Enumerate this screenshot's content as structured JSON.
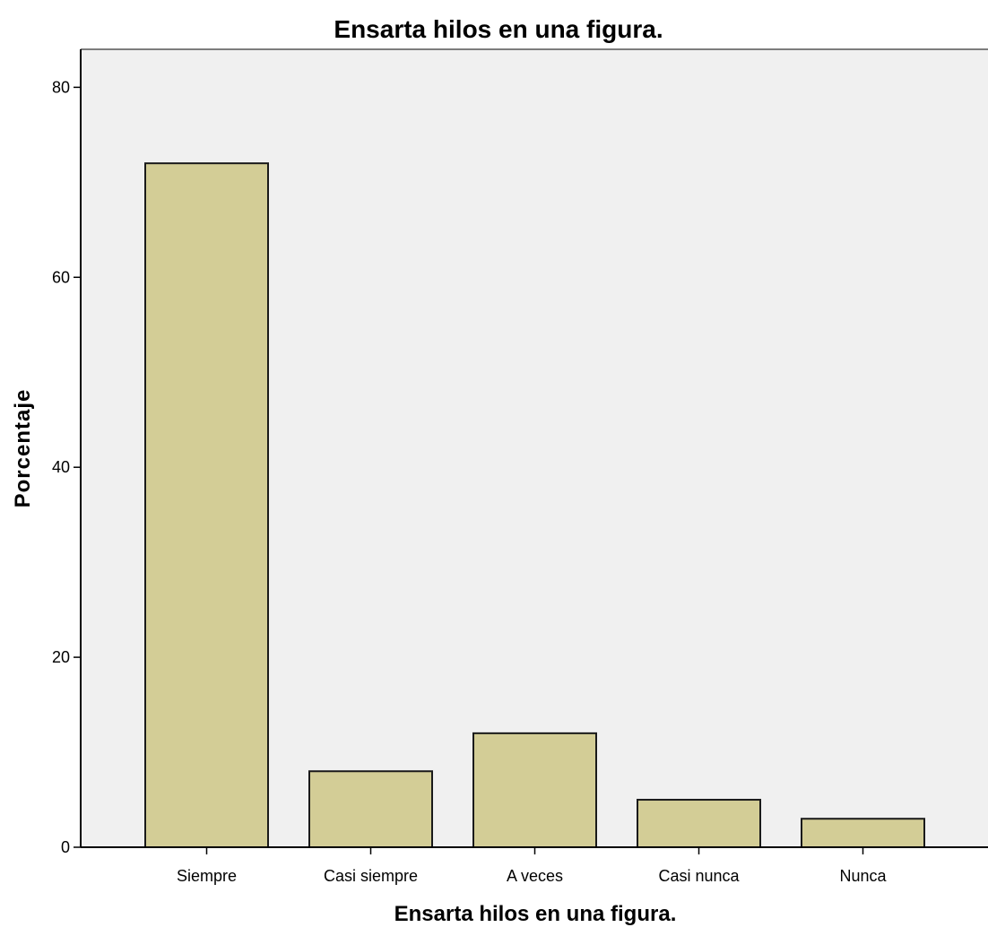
{
  "chart_data": {
    "type": "bar",
    "title": "Ensarta hilos en una figura.",
    "xlabel": "Ensarta hilos en una figura.",
    "ylabel": "Porcentaje",
    "categories": [
      "Siempre",
      "Casi siempre",
      "A veces",
      "Casi nunca",
      "Nunca"
    ],
    "values": [
      72,
      8,
      12,
      5,
      3
    ],
    "ylim": [
      0,
      84
    ],
    "yticks": [
      0,
      20,
      40,
      60,
      80
    ],
    "grid": false,
    "colors": {
      "bar_fill": "#d3cd96",
      "bar_stroke": "#1a1a1a",
      "plot_background": "#f0f0f0",
      "axis": "#000000"
    }
  }
}
